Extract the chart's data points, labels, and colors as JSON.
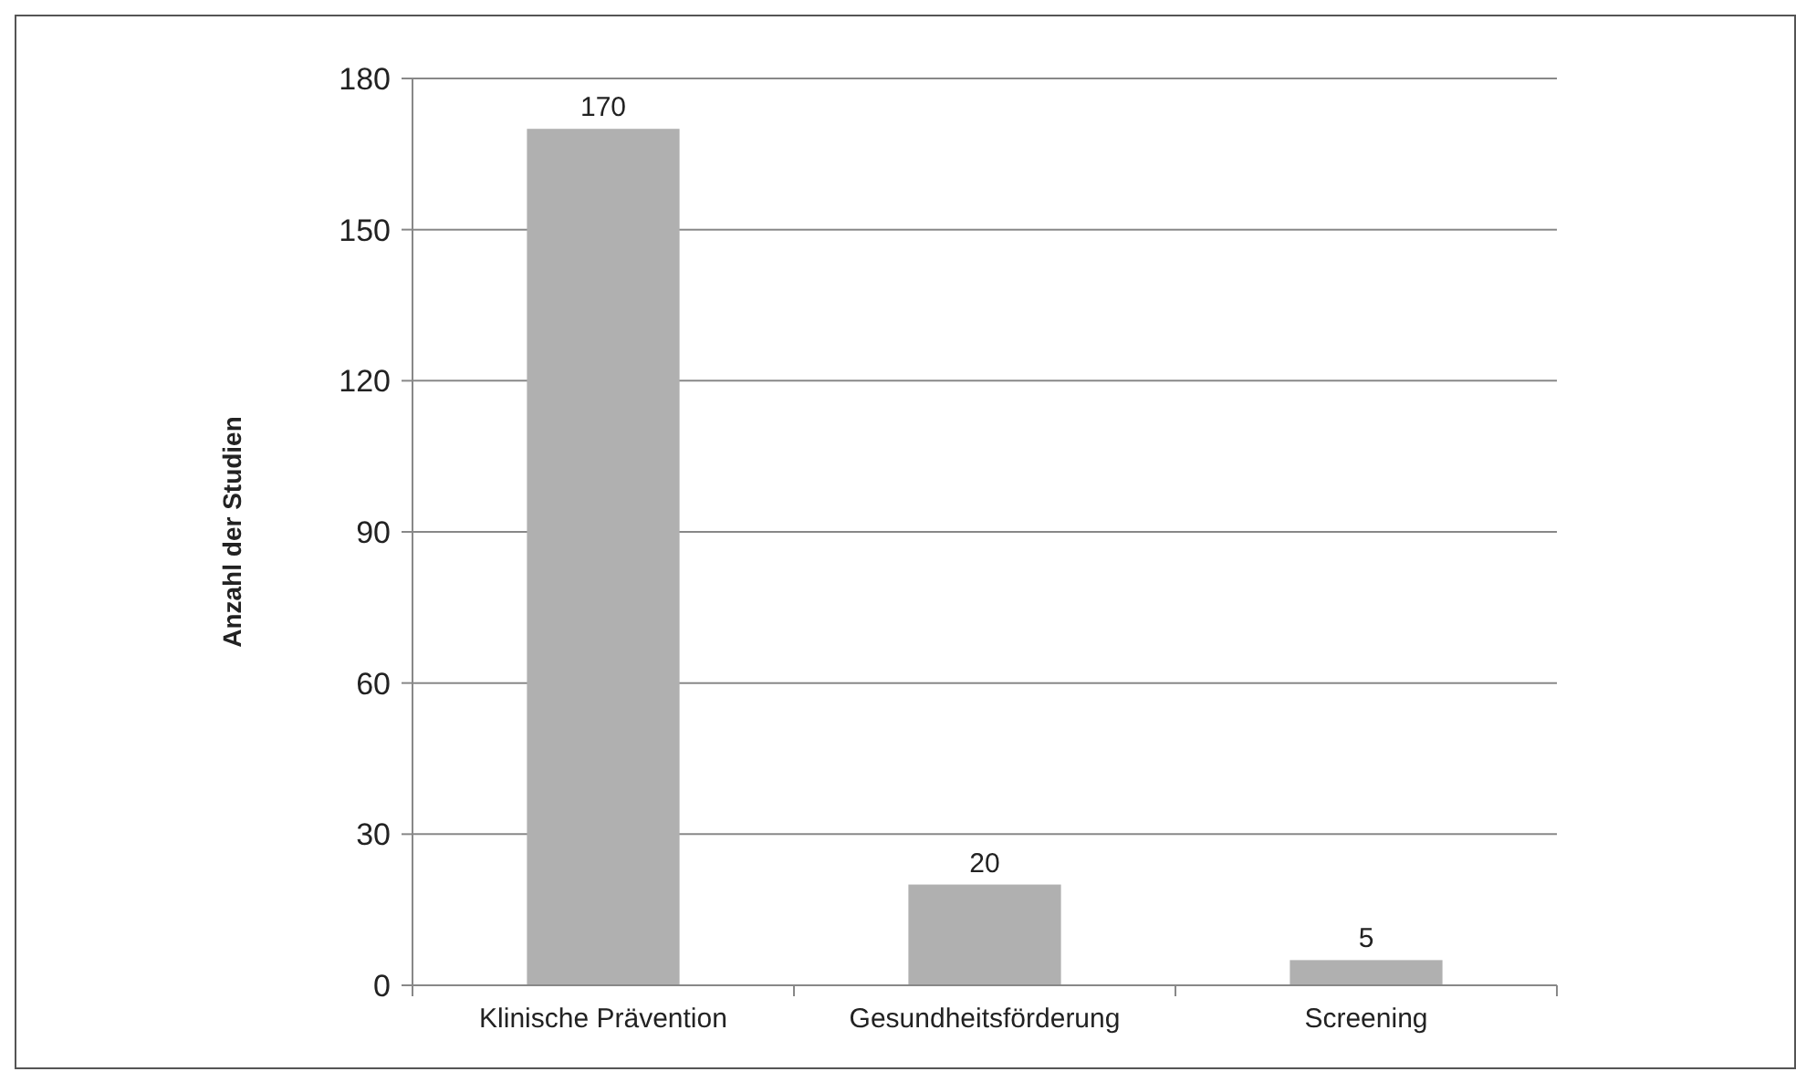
{
  "chart_data": {
    "type": "bar",
    "ylabel": "Anzahl der Studien",
    "categories": [
      "Klinische Prävention",
      "Gesundheitsförderung",
      "Screening"
    ],
    "values": [
      170,
      20,
      5
    ],
    "color": "#b0b0b0",
    "data_labels": true,
    "ylim": [
      0,
      180
    ],
    "yticks": [
      0,
      30,
      60,
      90,
      120,
      150,
      180
    ],
    "grid": "y"
  }
}
